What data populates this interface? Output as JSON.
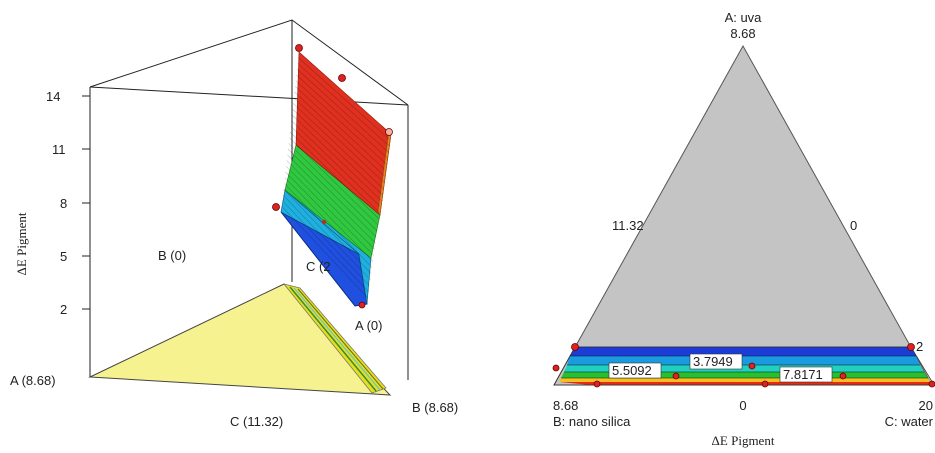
{
  "chart_data": [
    {
      "type": "3d surface",
      "zlabel": "ΔE Pigment",
      "z_ticks": [
        "14",
        "11",
        "8",
        "5",
        "2"
      ],
      "zlim": [
        2,
        14
      ],
      "axis_labels": {
        "b_low": "B (0)",
        "a_high": "A (8.68)",
        "c_high": "C (11.32)",
        "b_high": "B (8.68)",
        "c_partial": "C (2",
        "a_low": "A (0)"
      },
      "surface_bands": [
        {
          "from": 2,
          "to": 5,
          "color": "#2050e0"
        },
        {
          "from": 5,
          "to": 8,
          "color": "#20b0e0"
        },
        {
          "from": 8,
          "to": 11,
          "color": "#30c840"
        },
        {
          "from": 11,
          "to": 14,
          "color": "#e03020"
        }
      ],
      "base_color": "#f6f290"
    },
    {
      "type": "ternary contour",
      "title": "ΔE Pigment",
      "vertices": {
        "top": {
          "name": "A: uva",
          "value": "8.68"
        },
        "left": {
          "name": "B: nano silica",
          "value": "8.68"
        },
        "right": {
          "name": "C: water",
          "value": "20"
        }
      },
      "edge_labels": {
        "left": "11.32",
        "right": "0",
        "bottom": "0",
        "right_corner": "2"
      },
      "contour_labels": [
        {
          "value": 3.7949,
          "text": "3.7949"
        },
        {
          "value": 5.5092,
          "text": "5.5092"
        },
        {
          "value": 7.8171,
          "text": "7.8171"
        }
      ],
      "region_fill": "#c4c4c4"
    }
  ]
}
